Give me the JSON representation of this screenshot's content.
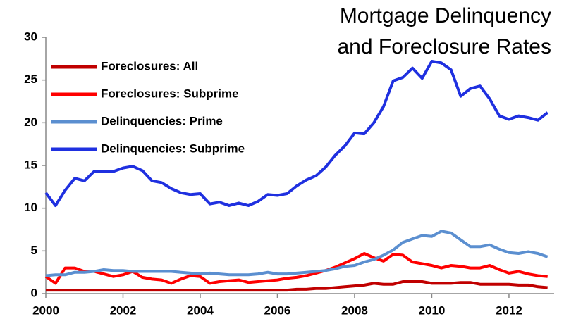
{
  "chart_data": {
    "type": "line",
    "title": [
      "Mortgage Delinquency",
      "and Foreclosure Rates"
    ],
    "x": [
      2000,
      2000.25,
      2000.5,
      2000.75,
      2001,
      2001.25,
      2001.5,
      2001.75,
      2002,
      2002.25,
      2002.5,
      2002.75,
      2003,
      2003.25,
      2003.5,
      2003.75,
      2004,
      2004.25,
      2004.5,
      2004.75,
      2005,
      2005.25,
      2005.5,
      2005.75,
      2006,
      2006.25,
      2006.5,
      2006.75,
      2007,
      2007.25,
      2007.5,
      2007.75,
      2008,
      2008.25,
      2008.5,
      2008.75,
      2009,
      2009.25,
      2009.5,
      2009.75,
      2010,
      2010.25,
      2010.5,
      2010.75,
      2011,
      2011.25,
      2011.5,
      2011.75,
      2012,
      2012.25,
      2012.5,
      2012.75,
      2013
    ],
    "series": [
      {
        "name": "Foreclosures: All",
        "color": "#c00000",
        "values": [
          0.4,
          0.4,
          0.4,
          0.4,
          0.4,
          0.4,
          0.4,
          0.4,
          0.4,
          0.4,
          0.4,
          0.4,
          0.4,
          0.4,
          0.4,
          0.4,
          0.4,
          0.4,
          0.4,
          0.4,
          0.4,
          0.4,
          0.4,
          0.4,
          0.4,
          0.4,
          0.5,
          0.5,
          0.6,
          0.6,
          0.7,
          0.8,
          0.9,
          1.0,
          1.2,
          1.1,
          1.1,
          1.4,
          1.4,
          1.4,
          1.2,
          1.2,
          1.2,
          1.3,
          1.3,
          1.1,
          1.1,
          1.1,
          1.1,
          1.0,
          1.0,
          0.8,
          0.7
        ]
      },
      {
        "name": "Foreclosures: Subprime",
        "color": "#ff0000",
        "values": [
          2.0,
          1.2,
          3.0,
          3.0,
          2.6,
          2.6,
          2.3,
          2.0,
          2.2,
          2.6,
          1.9,
          1.7,
          1.6,
          1.2,
          1.7,
          2.1,
          2.0,
          1.2,
          1.4,
          1.5,
          1.6,
          1.3,
          1.4,
          1.5,
          1.6,
          1.8,
          1.9,
          2.1,
          2.4,
          2.7,
          3.1,
          3.6,
          4.1,
          4.7,
          4.2,
          3.8,
          4.6,
          4.5,
          3.7,
          3.5,
          3.3,
          3.0,
          3.3,
          3.2,
          3.0,
          3.0,
          3.3,
          2.8,
          2.4,
          2.6,
          2.3,
          2.1,
          2.0
        ]
      },
      {
        "name": "Delinquencies: Prime",
        "color": "#5b8fd0",
        "values": [
          2.1,
          2.2,
          2.2,
          2.5,
          2.5,
          2.6,
          2.8,
          2.7,
          2.7,
          2.6,
          2.6,
          2.6,
          2.6,
          2.6,
          2.5,
          2.4,
          2.3,
          2.4,
          2.3,
          2.2,
          2.2,
          2.2,
          2.3,
          2.5,
          2.3,
          2.3,
          2.4,
          2.5,
          2.6,
          2.7,
          2.9,
          3.2,
          3.3,
          3.7,
          4.0,
          4.5,
          5.1,
          6.0,
          6.4,
          6.8,
          6.7,
          7.3,
          7.1,
          6.3,
          5.5,
          5.5,
          5.7,
          5.2,
          4.8,
          4.7,
          4.9,
          4.7,
          4.3
        ]
      },
      {
        "name": "Delinquencies: Subprime",
        "color": "#1f30e0",
        "values": [
          11.8,
          10.3,
          12.1,
          13.5,
          13.2,
          14.3,
          14.3,
          14.3,
          14.7,
          14.9,
          14.4,
          13.2,
          13.0,
          12.3,
          11.8,
          11.6,
          11.7,
          10.5,
          10.7,
          10.3,
          10.6,
          10.3,
          10.8,
          11.6,
          11.5,
          11.7,
          12.6,
          13.3,
          13.8,
          14.8,
          16.2,
          17.3,
          18.8,
          18.7,
          20.0,
          21.9,
          24.9,
          25.3,
          26.4,
          25.2,
          27.2,
          27.0,
          26.2,
          23.1,
          24.0,
          24.3,
          22.8,
          20.8,
          20.4,
          20.8,
          20.6,
          20.3,
          21.2
        ]
      }
    ],
    "xlim": [
      2000,
      2013.17
    ],
    "xticks": [
      2000,
      2002,
      2004,
      2006,
      2008,
      2010,
      2012
    ],
    "ylim": [
      0,
      30
    ],
    "yticks": [
      0,
      5,
      10,
      15,
      20,
      25,
      30
    ],
    "grid": false,
    "legend": "upper left"
  }
}
